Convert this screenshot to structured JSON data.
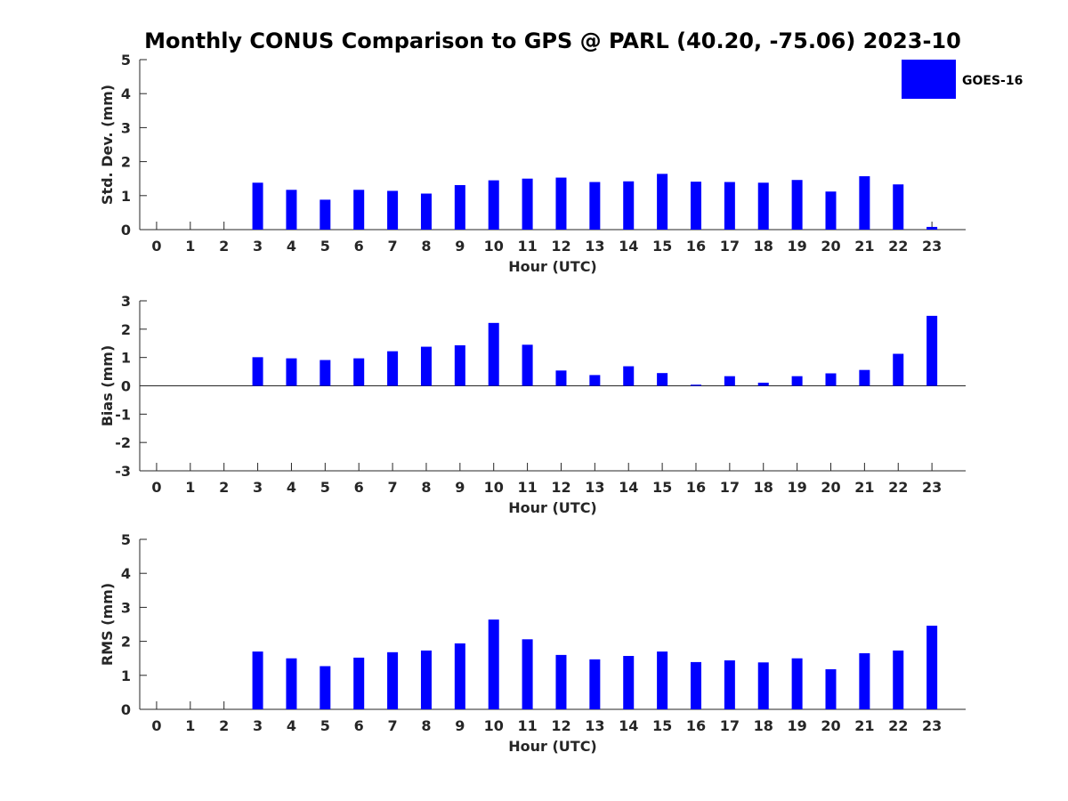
{
  "chart_data": {
    "title": "Monthly CONUS Comparison to GPS @ PARL (40.20, -75.06) 2023-10",
    "legend": {
      "label": "GOES-16",
      "position": "top-right",
      "color": "#0000ff"
    },
    "panels": [
      {
        "type": "bar",
        "categories": [
          "0",
          "1",
          "2",
          "3",
          "4",
          "5",
          "6",
          "7",
          "8",
          "9",
          "10",
          "11",
          "12",
          "13",
          "14",
          "15",
          "16",
          "17",
          "18",
          "19",
          "20",
          "21",
          "22",
          "23"
        ],
        "series": [
          {
            "name": "GOES-16",
            "color": "#0000ff",
            "values": [
              null,
              null,
              null,
              1.38,
              1.17,
              0.88,
              1.17,
              1.14,
              1.06,
              1.31,
              1.45,
              1.5,
              1.53,
              1.4,
              1.42,
              1.64,
              1.41,
              1.4,
              1.38,
              1.46,
              1.12,
              1.57,
              1.33,
              0.08
            ]
          }
        ],
        "xlabel": "Hour (UTC)",
        "ylabel": "Std. Dev. (mm)",
        "ylim": [
          0,
          5
        ],
        "yticks": [
          "0",
          "1",
          "2",
          "3",
          "4",
          "5"
        ],
        "grid": false
      },
      {
        "type": "bar",
        "categories": [
          "0",
          "1",
          "2",
          "3",
          "4",
          "5",
          "6",
          "7",
          "8",
          "9",
          "10",
          "11",
          "12",
          "13",
          "14",
          "15",
          "16",
          "17",
          "18",
          "19",
          "20",
          "21",
          "22",
          "23"
        ],
        "series": [
          {
            "name": "GOES-16",
            "color": "#0000ff",
            "values": [
              null,
              null,
              null,
              1.01,
              0.97,
              0.91,
              0.97,
              1.22,
              1.38,
              1.43,
              2.22,
              1.45,
              0.54,
              0.38,
              0.69,
              0.45,
              0.04,
              0.34,
              0.11,
              0.34,
              0.44,
              0.56,
              1.13,
              2.47
            ]
          }
        ],
        "xlabel": "Hour (UTC)",
        "ylabel": "Bias (mm)",
        "ylim": [
          -3,
          3
        ],
        "yticks": [
          "-3",
          "-2",
          "-1",
          "0",
          "1",
          "2",
          "3"
        ],
        "grid": false
      },
      {
        "type": "bar",
        "categories": [
          "0",
          "1",
          "2",
          "3",
          "4",
          "5",
          "6",
          "7",
          "8",
          "9",
          "10",
          "11",
          "12",
          "13",
          "14",
          "15",
          "16",
          "17",
          "18",
          "19",
          "20",
          "21",
          "22",
          "23"
        ],
        "series": [
          {
            "name": "GOES-16",
            "color": "#0000ff",
            "values": [
              null,
              null,
              null,
              1.7,
              1.5,
              1.27,
              1.52,
              1.68,
              1.73,
              1.94,
              2.64,
              2.06,
              1.6,
              1.47,
              1.57,
              1.7,
              1.39,
              1.44,
              1.38,
              1.5,
              1.18,
              1.65,
              1.73,
              2.46
            ]
          }
        ],
        "xlabel": "Hour (UTC)",
        "ylabel": "RMS (mm)",
        "ylim": [
          0,
          5
        ],
        "yticks": [
          "0",
          "1",
          "2",
          "3",
          "4",
          "5"
        ],
        "grid": false
      }
    ]
  }
}
